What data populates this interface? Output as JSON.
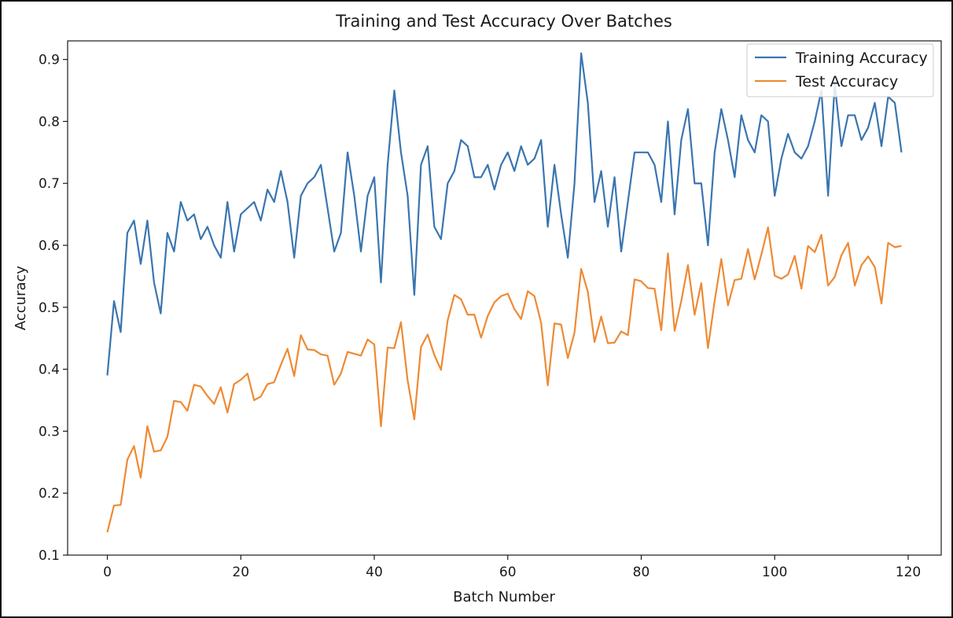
{
  "chart_data": {
    "type": "line",
    "title": "Training and Test Accuracy Over Batches",
    "xlabel": "Batch Number",
    "ylabel": "Accuracy",
    "xlim": [
      -5.95,
      124.95
    ],
    "ylim": [
      0.1,
      0.93
    ],
    "x_ticks": [
      0,
      20,
      40,
      60,
      80,
      100,
      120
    ],
    "y_ticks": [
      0.1,
      0.2,
      0.3,
      0.4,
      0.5,
      0.6,
      0.7,
      0.8,
      0.9
    ],
    "grid": false,
    "legend_position": "top-right",
    "x": [
      0,
      1,
      2,
      3,
      4,
      5,
      6,
      7,
      8,
      9,
      10,
      11,
      12,
      13,
      14,
      15,
      16,
      17,
      18,
      19,
      20,
      21,
      22,
      23,
      24,
      25,
      26,
      27,
      28,
      29,
      30,
      31,
      32,
      33,
      34,
      35,
      36,
      37,
      38,
      39,
      40,
      41,
      42,
      43,
      44,
      45,
      46,
      47,
      48,
      49,
      50,
      51,
      52,
      53,
      54,
      55,
      56,
      57,
      58,
      59,
      60,
      61,
      62,
      63,
      64,
      65,
      66,
      67,
      68,
      69,
      70,
      71,
      72,
      73,
      74,
      75,
      76,
      77,
      78,
      79,
      80,
      81,
      82,
      83,
      84,
      85,
      86,
      87,
      88,
      89,
      90,
      91,
      92,
      93,
      94,
      95,
      96,
      97,
      98,
      99,
      100,
      101,
      102,
      103,
      104,
      105,
      106,
      107,
      108,
      109,
      110,
      111,
      112,
      113,
      114,
      115,
      116,
      117,
      118,
      119
    ],
    "series": [
      {
        "name": "Training Accuracy",
        "color": "#3a75b0",
        "values": [
          0.39,
          0.51,
          0.46,
          0.62,
          0.64,
          0.57,
          0.64,
          0.54,
          0.49,
          0.62,
          0.59,
          0.67,
          0.64,
          0.65,
          0.61,
          0.63,
          0.6,
          0.58,
          0.67,
          0.59,
          0.65,
          0.66,
          0.67,
          0.64,
          0.69,
          0.67,
          0.72,
          0.67,
          0.58,
          0.68,
          0.7,
          0.71,
          0.73,
          0.66,
          0.59,
          0.62,
          0.75,
          0.68,
          0.59,
          0.68,
          0.71,
          0.54,
          0.73,
          0.85,
          0.75,
          0.68,
          0.52,
          0.73,
          0.76,
          0.63,
          0.61,
          0.7,
          0.72,
          0.77,
          0.76,
          0.71,
          0.71,
          0.73,
          0.69,
          0.73,
          0.75,
          0.72,
          0.76,
          0.73,
          0.74,
          0.77,
          0.63,
          0.73,
          0.65,
          0.58,
          0.7,
          0.91,
          0.83,
          0.67,
          0.72,
          0.63,
          0.71,
          0.59,
          0.67,
          0.75,
          0.75,
          0.75,
          0.73,
          0.67,
          0.8,
          0.65,
          0.77,
          0.82,
          0.7,
          0.7,
          0.6,
          0.75,
          0.82,
          0.77,
          0.71,
          0.81,
          0.77,
          0.75,
          0.81,
          0.8,
          0.68,
          0.74,
          0.78,
          0.75,
          0.74,
          0.76,
          0.8,
          0.85,
          0.68,
          0.86,
          0.76,
          0.81,
          0.81,
          0.77,
          0.79,
          0.83,
          0.76,
          0.84,
          0.83,
          0.75
        ]
      },
      {
        "name": "Test Accuracy",
        "color": "#ee8a33",
        "values": [
          0.137,
          0.18,
          0.181,
          0.254,
          0.276,
          0.225,
          0.308,
          0.267,
          0.269,
          0.291,
          0.349,
          0.347,
          0.333,
          0.375,
          0.372,
          0.357,
          0.344,
          0.371,
          0.33,
          0.376,
          0.383,
          0.393,
          0.35,
          0.356,
          0.376,
          0.379,
          0.407,
          0.433,
          0.389,
          0.455,
          0.432,
          0.431,
          0.424,
          0.422,
          0.375,
          0.393,
          0.428,
          0.425,
          0.422,
          0.448,
          0.44,
          0.308,
          0.435,
          0.434,
          0.476,
          0.382,
          0.319,
          0.436,
          0.456,
          0.423,
          0.399,
          0.479,
          0.52,
          0.513,
          0.488,
          0.488,
          0.451,
          0.486,
          0.508,
          0.518,
          0.522,
          0.497,
          0.481,
          0.526,
          0.518,
          0.475,
          0.374,
          0.474,
          0.472,
          0.418,
          0.459,
          0.562,
          0.525,
          0.444,
          0.485,
          0.442,
          0.443,
          0.461,
          0.455,
          0.545,
          0.542,
          0.531,
          0.53,
          0.463,
          0.587,
          0.462,
          0.51,
          0.568,
          0.488,
          0.539,
          0.434,
          0.51,
          0.578,
          0.503,
          0.544,
          0.546,
          0.594,
          0.545,
          0.585,
          0.629,
          0.551,
          0.546,
          0.553,
          0.583,
          0.53,
          0.599,
          0.589,
          0.617,
          0.535,
          0.549,
          0.584,
          0.604,
          0.535,
          0.568,
          0.582,
          0.565,
          0.506,
          0.604,
          0.597,
          0.599
        ]
      }
    ]
  }
}
